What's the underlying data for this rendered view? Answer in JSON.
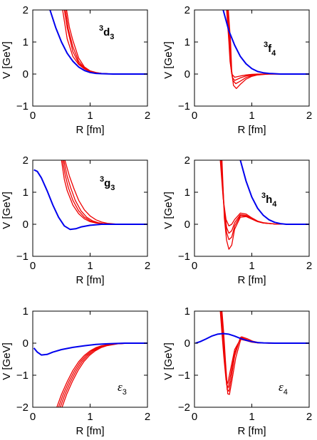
{
  "colors": {
    "blue": "#0000ee",
    "red": "#ee0000"
  },
  "chart_data": [
    {
      "type": "line",
      "panel": "3d3",
      "label_base": "d",
      "label_sup": "3",
      "label_sub": "3",
      "label_italic": false,
      "xlabel": "R [fm]",
      "ylabel": "V  [GeV]",
      "xlim": [
        0,
        2
      ],
      "ylim": [
        -1,
        2
      ],
      "xticks": [
        0,
        1,
        2
      ],
      "yticks": [
        -1,
        0,
        1,
        2
      ],
      "xtick_labels": [
        "0",
        "1",
        "2"
      ],
      "ytick_labels": [
        "−1",
        "0",
        "1",
        "2"
      ],
      "series": [
        {
          "color": "blue",
          "x": [
            0.3,
            0.4,
            0.5,
            0.6,
            0.7,
            0.8,
            0.9,
            1.0,
            1.1,
            1.2,
            1.4,
            1.6,
            2.0
          ],
          "y": [
            2.0,
            1.45,
            1.0,
            0.65,
            0.4,
            0.22,
            0.11,
            0.05,
            0.02,
            0.01,
            0.0,
            0.0,
            0.0
          ]
        },
        {
          "color": "red",
          "x": [
            0.52,
            0.6,
            0.7,
            0.8,
            0.9,
            1.0,
            1.1,
            1.2,
            1.4,
            2.0
          ],
          "y": [
            2.0,
            1.1,
            0.55,
            0.3,
            0.16,
            0.08,
            0.04,
            0.02,
            0.0,
            0.0
          ]
        },
        {
          "color": "red",
          "x": [
            0.55,
            0.6,
            0.7,
            0.8,
            0.9,
            1.0,
            1.1,
            1.2,
            1.4,
            2.0
          ],
          "y": [
            2.0,
            1.45,
            0.7,
            0.34,
            0.17,
            0.08,
            0.04,
            0.02,
            0.0,
            0.0
          ]
        },
        {
          "color": "red",
          "x": [
            0.57,
            0.62,
            0.7,
            0.8,
            0.9,
            1.0,
            1.1,
            1.2,
            1.4,
            2.0
          ],
          "y": [
            2.0,
            1.4,
            0.85,
            0.4,
            0.19,
            0.09,
            0.04,
            0.02,
            0.0,
            0.0
          ]
        },
        {
          "color": "red",
          "x": [
            0.59,
            0.64,
            0.7,
            0.8,
            0.9,
            1.0,
            1.1,
            1.2,
            1.4,
            2.0
          ],
          "y": [
            2.0,
            1.45,
            1.05,
            0.5,
            0.22,
            0.1,
            0.05,
            0.02,
            0.0,
            0.0
          ]
        }
      ]
    },
    {
      "type": "line",
      "panel": "3f4",
      "label_base": "f",
      "label_sup": "3",
      "label_sub": "4",
      "label_italic": false,
      "xlabel": "R [fm]",
      "ylabel": "V  [GeV]",
      "xlim": [
        0,
        2
      ],
      "ylim": [
        -1,
        2
      ],
      "xticks": [
        0,
        1,
        2
      ],
      "yticks": [
        -1,
        0,
        1,
        2
      ],
      "xtick_labels": [
        "0",
        "1",
        "2"
      ],
      "ytick_labels": [
        "−1",
        "0",
        "1",
        "2"
      ],
      "series": [
        {
          "color": "blue",
          "x": [
            0.5,
            0.6,
            0.7,
            0.8,
            0.9,
            1.0,
            1.1,
            1.2,
            1.3,
            1.5,
            2.0
          ],
          "y": [
            2.0,
            1.35,
            0.9,
            0.55,
            0.32,
            0.17,
            0.08,
            0.04,
            0.02,
            0.0,
            0.0
          ]
        },
        {
          "color": "red",
          "x": [
            0.56,
            0.6,
            0.62,
            0.65,
            0.7,
            0.8,
            0.9,
            1.0,
            1.1,
            1.3,
            2.0
          ],
          "y": [
            2.0,
            1.0,
            0.4,
            0.0,
            -0.1,
            -0.06,
            -0.03,
            -0.01,
            0.0,
            0.0,
            0.0
          ]
        },
        {
          "color": "red",
          "x": [
            0.57,
            0.61,
            0.63,
            0.66,
            0.7,
            0.8,
            0.9,
            1.0,
            1.1,
            1.3,
            2.0
          ],
          "y": [
            2.0,
            1.0,
            0.3,
            -0.1,
            -0.2,
            -0.12,
            -0.06,
            -0.03,
            -0.01,
            0.0,
            0.0
          ]
        },
        {
          "color": "red",
          "x": [
            0.58,
            0.62,
            0.64,
            0.67,
            0.72,
            0.8,
            0.9,
            1.0,
            1.1,
            1.3,
            2.0
          ],
          "y": [
            2.0,
            1.0,
            0.2,
            -0.2,
            -0.3,
            -0.22,
            -0.11,
            -0.05,
            -0.02,
            0.0,
            0.0
          ]
        },
        {
          "color": "red",
          "x": [
            0.59,
            0.63,
            0.65,
            0.68,
            0.73,
            0.8,
            0.9,
            1.0,
            1.1,
            1.3,
            2.0
          ],
          "y": [
            2.0,
            1.0,
            0.1,
            -0.35,
            -0.45,
            -0.32,
            -0.16,
            -0.07,
            -0.03,
            0.0,
            0.0
          ]
        }
      ]
    },
    {
      "type": "line",
      "panel": "3g3",
      "label_base": "g",
      "label_sup": "3",
      "label_sub": "3",
      "label_italic": false,
      "xlabel": "R [fm]",
      "ylabel": "V  [GeV]",
      "xlim": [
        0,
        2
      ],
      "ylim": [
        -1,
        2
      ],
      "xticks": [
        0,
        1,
        2
      ],
      "yticks": [
        -1,
        0,
        1,
        2
      ],
      "xtick_labels": [
        "0",
        "1",
        "2"
      ],
      "ytick_labels": [
        "−1",
        "0",
        "1",
        "2"
      ],
      "series": [
        {
          "color": "blue",
          "x": [
            0.02,
            0.08,
            0.15,
            0.25,
            0.35,
            0.45,
            0.55,
            0.65,
            0.75,
            0.85,
            1.0,
            1.2,
            1.5,
            2.0
          ],
          "y": [
            1.7,
            1.65,
            1.45,
            1.05,
            0.6,
            0.22,
            -0.05,
            -0.16,
            -0.14,
            -0.08,
            -0.03,
            0.0,
            0.0,
            0.0
          ]
        },
        {
          "color": "red",
          "x": [
            0.5,
            0.55,
            0.6,
            0.7,
            0.8,
            0.9,
            1.0,
            1.1,
            1.2,
            1.4,
            2.0
          ],
          "y": [
            2.0,
            1.4,
            1.05,
            0.6,
            0.33,
            0.17,
            0.08,
            0.04,
            0.02,
            0.0,
            0.0
          ]
        },
        {
          "color": "red",
          "x": [
            0.52,
            0.57,
            0.62,
            0.7,
            0.8,
            0.9,
            1.0,
            1.1,
            1.2,
            1.4,
            2.0
          ],
          "y": [
            2.0,
            1.5,
            1.15,
            0.75,
            0.42,
            0.22,
            0.11,
            0.05,
            0.02,
            0.0,
            0.0
          ]
        },
        {
          "color": "red",
          "x": [
            0.54,
            0.6,
            0.66,
            0.74,
            0.84,
            0.94,
            1.04,
            1.14,
            1.24,
            1.44,
            2.0
          ],
          "y": [
            2.0,
            1.5,
            1.15,
            0.75,
            0.42,
            0.22,
            0.11,
            0.05,
            0.02,
            0.0,
            0.0
          ]
        },
        {
          "color": "red",
          "x": [
            0.56,
            0.64,
            0.72,
            0.8,
            0.9,
            1.0,
            1.1,
            1.2,
            1.3,
            1.5,
            2.0
          ],
          "y": [
            2.0,
            1.5,
            1.1,
            0.75,
            0.45,
            0.26,
            0.14,
            0.07,
            0.03,
            0.0,
            0.0
          ]
        }
      ]
    },
    {
      "type": "line",
      "panel": "3h4",
      "label_base": "h",
      "label_sup": "3",
      "label_sub": "4",
      "label_italic": false,
      "xlabel": "R [fm]",
      "ylabel": "V  [GeV]",
      "xlim": [
        0,
        2
      ],
      "ylim": [
        -1,
        2
      ],
      "xticks": [
        0,
        1,
        2
      ],
      "yticks": [
        -1,
        0,
        1,
        2
      ],
      "xtick_labels": [
        "0",
        "1",
        "2"
      ],
      "ytick_labels": [
        "−1",
        "0",
        "1",
        "2"
      ],
      "series": [
        {
          "color": "blue",
          "x": [
            0.8,
            0.9,
            1.0,
            1.1,
            1.2,
            1.3,
            1.4,
            1.5,
            1.6,
            1.8,
            2.0
          ],
          "y": [
            2.0,
            1.35,
            0.85,
            0.5,
            0.28,
            0.14,
            0.06,
            0.02,
            0.0,
            0.0,
            0.0
          ]
        },
        {
          "color": "red",
          "x": [
            0.45,
            0.5,
            0.55,
            0.6,
            0.65,
            0.7,
            0.8,
            0.9,
            1.0,
            1.1,
            1.2,
            1.4,
            2.0
          ],
          "y": [
            2.0,
            0.8,
            0.15,
            -0.05,
            0.0,
            0.15,
            0.35,
            0.32,
            0.2,
            0.1,
            0.05,
            0.01,
            0.0
          ]
        },
        {
          "color": "red",
          "x": [
            0.46,
            0.51,
            0.56,
            0.6,
            0.65,
            0.7,
            0.8,
            0.9,
            1.0,
            1.1,
            1.2,
            1.4,
            2.0
          ],
          "y": [
            2.0,
            0.6,
            -0.1,
            -0.28,
            -0.2,
            0.05,
            0.3,
            0.28,
            0.18,
            0.09,
            0.04,
            0.01,
            0.0
          ]
        },
        {
          "color": "red",
          "x": [
            0.47,
            0.52,
            0.56,
            0.6,
            0.65,
            0.7,
            0.8,
            0.9,
            1.0,
            1.1,
            1.2,
            1.4,
            2.0
          ],
          "y": [
            2.0,
            0.4,
            -0.25,
            -0.48,
            -0.4,
            -0.05,
            0.27,
            0.26,
            0.17,
            0.09,
            0.04,
            0.01,
            0.0
          ]
        },
        {
          "color": "red",
          "x": [
            0.48,
            0.52,
            0.56,
            0.6,
            0.65,
            0.7,
            0.8,
            0.9,
            1.0,
            1.1,
            1.2,
            1.4,
            2.0
          ],
          "y": [
            2.0,
            0.2,
            -0.5,
            -0.78,
            -0.65,
            -0.15,
            0.22,
            0.24,
            0.16,
            0.08,
            0.04,
            0.01,
            0.0
          ]
        }
      ]
    },
    {
      "type": "line",
      "panel": "eps3",
      "label_base": "ε",
      "label_sup": "",
      "label_sub": "3",
      "label_italic": true,
      "xlabel": "R [fm]",
      "ylabel": "V  [GeV]",
      "xlim": [
        0,
        2
      ],
      "ylim": [
        -2,
        1
      ],
      "xticks": [
        0,
        1,
        2
      ],
      "yticks": [
        -2,
        -1,
        0,
        1
      ],
      "xtick_labels": [
        "0",
        "1",
        "2"
      ],
      "ytick_labels": [
        "−2",
        "−1",
        "0",
        "1"
      ],
      "series": [
        {
          "color": "blue",
          "x": [
            0.02,
            0.08,
            0.15,
            0.25,
            0.35,
            0.5,
            0.7,
            0.9,
            1.1,
            1.3,
            1.6,
            2.0
          ],
          "y": [
            -0.15,
            -0.28,
            -0.37,
            -0.35,
            -0.28,
            -0.2,
            -0.13,
            -0.08,
            -0.04,
            -0.02,
            0.0,
            0.0
          ]
        },
        {
          "color": "red",
          "x": [
            0.42,
            0.5,
            0.6,
            0.7,
            0.8,
            0.9,
            1.0,
            1.1,
            1.2,
            1.4,
            1.7,
            2.0
          ],
          "y": [
            -2.0,
            -1.6,
            -1.2,
            -0.85,
            -0.58,
            -0.38,
            -0.24,
            -0.14,
            -0.08,
            -0.02,
            0.0,
            0.0
          ]
        },
        {
          "color": "red",
          "x": [
            0.45,
            0.53,
            0.63,
            0.73,
            0.83,
            0.93,
            1.03,
            1.13,
            1.23,
            1.43,
            1.7,
            2.0
          ],
          "y": [
            -2.0,
            -1.6,
            -1.2,
            -0.85,
            -0.58,
            -0.38,
            -0.24,
            -0.14,
            -0.08,
            -0.02,
            0.0,
            0.0
          ]
        },
        {
          "color": "red",
          "x": [
            0.48,
            0.56,
            0.66,
            0.76,
            0.86,
            0.96,
            1.06,
            1.16,
            1.26,
            1.46,
            1.7,
            2.0
          ],
          "y": [
            -2.0,
            -1.6,
            -1.2,
            -0.85,
            -0.58,
            -0.38,
            -0.24,
            -0.14,
            -0.08,
            -0.02,
            0.0,
            0.0
          ]
        },
        {
          "color": "red",
          "x": [
            0.51,
            0.59,
            0.69,
            0.79,
            0.89,
            0.99,
            1.09,
            1.19,
            1.29,
            1.49,
            1.7,
            2.0
          ],
          "y": [
            -2.0,
            -1.6,
            -1.2,
            -0.85,
            -0.58,
            -0.38,
            -0.24,
            -0.14,
            -0.08,
            -0.02,
            0.0,
            0.0
          ]
        }
      ]
    },
    {
      "type": "line",
      "panel": "eps4",
      "label_base": "ε",
      "label_sup": "",
      "label_sub": "4",
      "label_italic": true,
      "xlabel": "R [fm]",
      "ylabel": "V  [GeV]",
      "xlim": [
        0,
        2
      ],
      "ylim": [
        -2,
        1
      ],
      "xticks": [
        0,
        1,
        2
      ],
      "yticks": [
        -2,
        -1,
        0,
        1
      ],
      "xtick_labels": [
        "0",
        "1",
        "2"
      ],
      "ytick_labels": [
        "−2",
        "−1",
        "0",
        "1"
      ],
      "series": [
        {
          "color": "blue",
          "x": [
            0.02,
            0.1,
            0.2,
            0.3,
            0.4,
            0.5,
            0.6,
            0.7,
            0.8,
            0.9,
            1.0,
            1.1,
            1.2,
            1.4,
            2.0
          ],
          "y": [
            0.0,
            0.05,
            0.13,
            0.22,
            0.28,
            0.3,
            0.28,
            0.22,
            0.15,
            0.09,
            0.05,
            0.02,
            0.01,
            0.0,
            0.0
          ]
        },
        {
          "color": "red",
          "x": [
            0.45,
            0.48,
            0.51,
            0.55,
            0.58,
            0.62,
            0.7,
            0.8,
            0.9,
            1.0,
            1.1,
            1.3,
            2.0
          ],
          "y": [
            1.0,
            0.3,
            -0.4,
            -1.15,
            -1.25,
            -0.9,
            -0.2,
            0.12,
            0.08,
            0.03,
            0.01,
            0.0,
            0.0
          ]
        },
        {
          "color": "red",
          "x": [
            0.46,
            0.49,
            0.52,
            0.56,
            0.59,
            0.63,
            0.7,
            0.8,
            0.9,
            1.0,
            1.1,
            1.3,
            2.0
          ],
          "y": [
            1.0,
            0.3,
            -0.45,
            -1.3,
            -1.38,
            -1.0,
            -0.3,
            0.15,
            0.1,
            0.04,
            0.01,
            0.0,
            0.0
          ]
        },
        {
          "color": "red",
          "x": [
            0.47,
            0.5,
            0.53,
            0.57,
            0.6,
            0.64,
            0.7,
            0.8,
            0.9,
            1.0,
            1.1,
            1.3,
            2.0
          ],
          "y": [
            1.0,
            0.3,
            -0.5,
            -1.45,
            -1.5,
            -1.1,
            -0.4,
            0.18,
            0.12,
            0.05,
            0.02,
            0.0,
            0.0
          ]
        },
        {
          "color": "red",
          "x": [
            0.48,
            0.51,
            0.54,
            0.58,
            0.61,
            0.65,
            0.72,
            0.82,
            0.92,
            1.02,
            1.12,
            1.3,
            2.0
          ],
          "y": [
            1.0,
            0.3,
            -0.55,
            -1.58,
            -1.6,
            -1.2,
            -0.45,
            0.2,
            0.14,
            0.06,
            0.02,
            0.0,
            0.0
          ]
        }
      ]
    }
  ]
}
